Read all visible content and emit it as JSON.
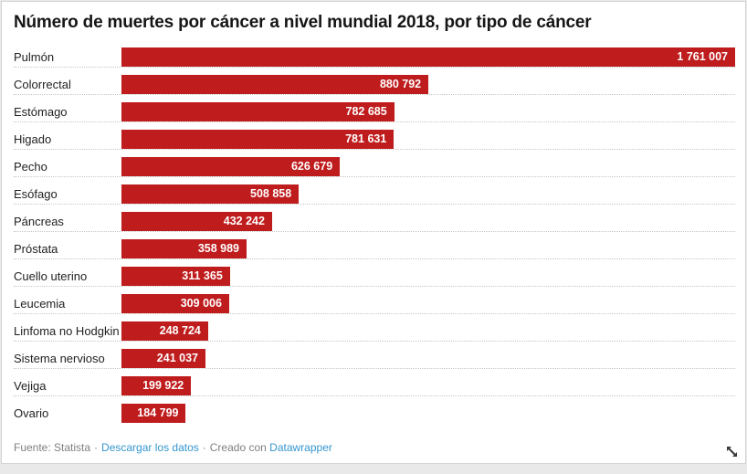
{
  "title": "Número de muertes por cáncer a nivel mundial 2018, por tipo de cáncer",
  "chart_data": {
    "type": "bar",
    "orientation": "horizontal",
    "title": "Número de muertes por cáncer a nivel mundial 2018, por tipo de cáncer",
    "categories": [
      "Pulmón",
      "Colorrectal",
      "Estómago",
      "Higado",
      "Pecho",
      "Esófago",
      "Páncreas",
      "Próstata",
      "Cuello uterino",
      "Leucemia",
      "Linfoma no Hodgkin",
      "Sistema nervioso",
      "Vejiga",
      "Ovario"
    ],
    "values": [
      1761007,
      880792,
      782685,
      781631,
      626679,
      508858,
      432242,
      358989,
      311365,
      309006,
      248724,
      241037,
      199922,
      184799
    ],
    "value_labels": [
      "1 761 007",
      "880 792",
      "782 685",
      "781 631",
      "626 679",
      "508 858",
      "432 242",
      "358 989",
      "311 365",
      "309 006",
      "248 724",
      "241 037",
      "199 922",
      "184 799"
    ],
    "xlabel": "",
    "ylabel": "",
    "xlim": [
      0,
      1761007
    ],
    "grid": "dotted-row-separators",
    "legend": "none",
    "value_label_position": "inside-end"
  },
  "footer": {
    "source_text": "Fuente: Statista",
    "separator": "·",
    "download_link": "Descargar los datos",
    "created_with": "Creado con",
    "creator_link": "Datawrapper"
  },
  "icons": {
    "resize_handle": "diagonal-double-arrow"
  },
  "colors": {
    "bar": "#bf1c1d",
    "bar_value_text": "#ffffff",
    "title_text": "#161616",
    "category_text": "#222222",
    "footer_text": "#7f7f7f",
    "link": "#3496cf",
    "separator_dots": "#c6c6c6",
    "card_border": "#d4d4d4",
    "page_background": "#e9e9e9"
  }
}
